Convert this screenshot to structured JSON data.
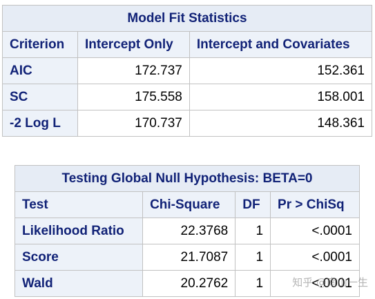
{
  "fit_table": {
    "caption": "Model Fit Statistics",
    "headers": [
      "Criterion",
      "Intercept Only",
      "Intercept and Covariates"
    ],
    "rows": [
      {
        "criterion": "AIC",
        "intercept_only": "172.737",
        "intercept_and_covariates": "152.361"
      },
      {
        "criterion": "SC",
        "intercept_only": "175.558",
        "intercept_and_covariates": "158.001"
      },
      {
        "criterion": "-2 Log L",
        "intercept_only": "170.737",
        "intercept_and_covariates": "148.361"
      }
    ]
  },
  "null_table": {
    "caption": "Testing Global Null Hypothesis: BETA=0",
    "headers": [
      "Test",
      "Chi-Square",
      "DF",
      "Pr > ChiSq"
    ],
    "rows": [
      {
        "test": "Likelihood Ratio",
        "chi_square": "22.3768",
        "df": "1",
        "p": "<.0001"
      },
      {
        "test": "Score",
        "chi_square": "21.7087",
        "df": "1",
        "p": "<.0001"
      },
      {
        "test": "Wald",
        "chi_square": "20.2762",
        "df": "1",
        "p": "<.0001"
      }
    ]
  },
  "watermark": "知乎 @南山一生"
}
